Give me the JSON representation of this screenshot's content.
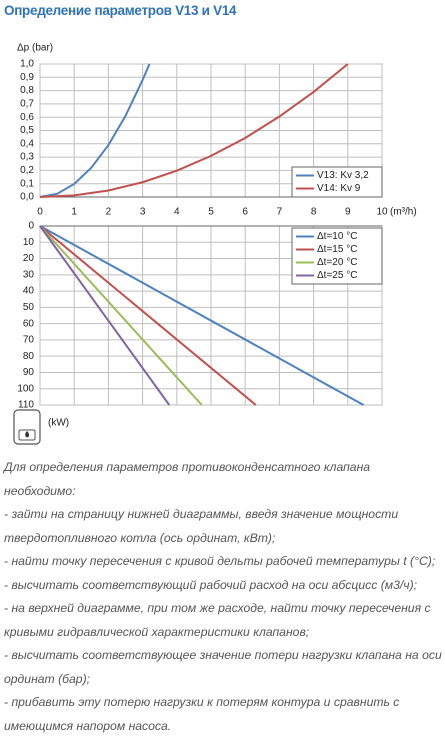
{
  "title": "Определение параметров V13 и V14",
  "chart_data": [
    {
      "type": "line",
      "y_label": "Δp (bar)",
      "x_label": "(m³/h)",
      "xlim": [
        0,
        10
      ],
      "xticks": [
        0,
        1,
        2,
        3,
        4,
        5,
        6,
        7,
        8,
        9,
        10
      ],
      "ylim": [
        0,
        1
      ],
      "yticks": [
        {
          "value": 0,
          "label": "0,0"
        },
        {
          "value": 0.1,
          "label": "0,1"
        },
        {
          "value": 0.2,
          "label": "0,2"
        },
        {
          "value": 0.3,
          "label": "0,3"
        },
        {
          "value": 0.4,
          "label": "0,4"
        },
        {
          "value": 0.5,
          "label": "0,5"
        },
        {
          "value": 0.6,
          "label": "0,6"
        },
        {
          "value": 0.7,
          "label": "0,7"
        },
        {
          "value": 0.8,
          "label": "0,8"
        },
        {
          "value": 0.9,
          "label": "0,9"
        },
        {
          "value": 1,
          "label": "1,0"
        }
      ],
      "grid": true,
      "legend": "lower right",
      "series": [
        {
          "name": "V13: Kv 3,2",
          "color": "#4f81bd",
          "x": [
            0,
            0.5,
            1,
            1.5,
            2,
            2.5,
            3,
            3.2
          ],
          "values": [
            0,
            0.024,
            0.098,
            0.22,
            0.39,
            0.61,
            0.88,
            1.0
          ]
        },
        {
          "name": "V14: Kv 9",
          "color": "#c0504d",
          "x": [
            0,
            1,
            2,
            3,
            4,
            5,
            6,
            7,
            8,
            9
          ],
          "values": [
            0,
            0.012,
            0.049,
            0.111,
            0.198,
            0.309,
            0.444,
            0.605,
            0.79,
            1.0
          ]
        }
      ]
    },
    {
      "type": "line",
      "y_label": "(kW)",
      "y_inverted": true,
      "xlim": [
        0,
        10
      ],
      "xticks": [
        0,
        1,
        2,
        3,
        4,
        5,
        6,
        7,
        8,
        9,
        10
      ],
      "ylim": [
        0,
        110
      ],
      "yticks": [
        0,
        10,
        20,
        30,
        40,
        50,
        60,
        70,
        80,
        90,
        100,
        110
      ],
      "grid": true,
      "legend": "upper right",
      "series": [
        {
          "name": "Δt=10 °C",
          "color": "#4f81bd",
          "x": [
            0,
            9.46
          ],
          "values": [
            0,
            110
          ]
        },
        {
          "name": "Δt=15 °C",
          "color": "#c0504d",
          "x": [
            0,
            6.31
          ],
          "values": [
            0,
            110
          ]
        },
        {
          "name": "Δt=20 °C",
          "color": "#9bbb59",
          "x": [
            0,
            4.73
          ],
          "values": [
            0,
            110
          ]
        },
        {
          "name": "Δt=25 °C",
          "color": "#8064a2",
          "x": [
            0,
            3.78
          ],
          "values": [
            0,
            110
          ]
        }
      ]
    }
  ],
  "instructions": [
    "Для определения параметров противоконденсатного клапана необходимо:",
    "- зайти на страницу нижней диаграммы, введя значение мощности твердотопливного котла (ось ординат, кВт);",
    "- найти точку пересечения с кривой дельты рабочей температуры t (°C);",
    "- высчитать соответствующий рабочий расход на оси абсцисс (м3/ч);",
    "- на верхней диаграмме, при том же расходе, найти точку пересечения с кривыми гидравлической характеристики клапанов;",
    "- высчитать соответствующее значение потери нагрузки клапана на оси ординат (бар);",
    "- прибавить эту потерю нагрузки к потерям контура и сравнить с имеющимся напором насоса."
  ]
}
